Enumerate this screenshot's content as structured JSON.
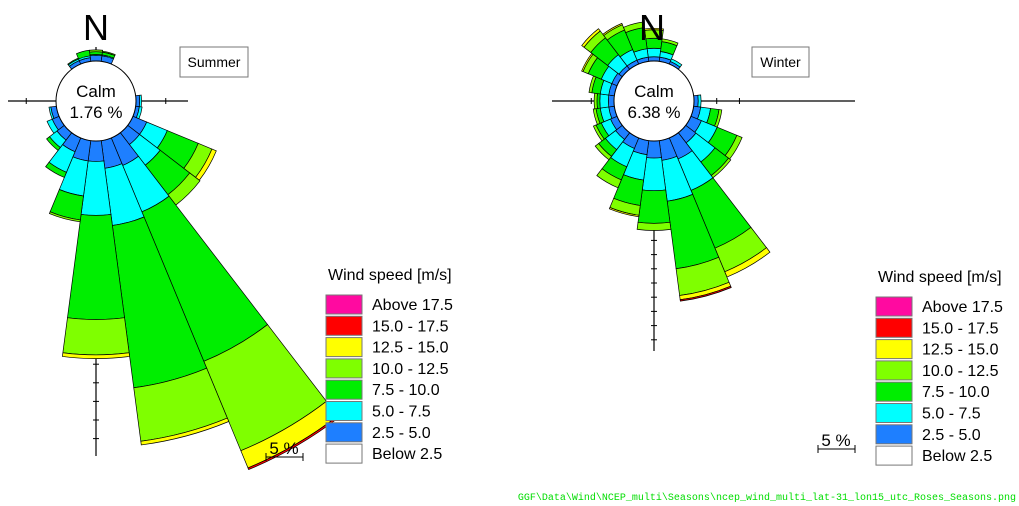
{
  "chart_data": [
    {
      "type": "windrose",
      "title": "Summer",
      "north_label": "N",
      "calm_label": "Calm",
      "calm_value": "1.76 %",
      "scale_label": "5 %",
      "legend_title": "Wind speed [m/s]",
      "speed_bins": [
        "Below 2.5",
        "2.5 - 5.0",
        "5.0 - 7.5",
        "7.5 - 10.0",
        "10.0 - 12.5",
        "12.5 - 15.0",
        "15.0 - 17.5",
        "Above 17.5"
      ],
      "direction_step_deg": 15,
      "petals": [
        {
          "dir": 0,
          "cum": [
            0.3,
            0.35,
            0.5,
            0.6
          ]
        },
        {
          "dir": 15,
          "cum": [
            0.3,
            0.35,
            0.5,
            0.55
          ]
        },
        {
          "dir": 90,
          "cum": [
            0.2,
            0.3
          ]
        },
        {
          "dir": 105,
          "cum": [
            0.2,
            0.35
          ]
        },
        {
          "dir": 120,
          "cum": [
            0.8,
            2.0,
            3.8,
            4.6,
            4.85
          ]
        },
        {
          "dir": 135,
          "cum": [
            0.8,
            2.2,
            4.2,
            4.9
          ]
        },
        {
          "dir": 150,
          "cum": [
            1.6,
            4.3,
            13.0,
            18.2,
            19.2,
            19.3
          ]
        },
        {
          "dir": 165,
          "cum": [
            1.5,
            4.6,
            13.4,
            16.3,
            16.5
          ]
        },
        {
          "dir": 180,
          "cum": [
            1.1,
            4.0,
            9.6,
            11.5,
            11.7
          ]
        },
        {
          "dir": 195,
          "cum": [
            1.1,
            3.0,
            4.3,
            4.4
          ]
        },
        {
          "dir": 210,
          "cum": [
            0.8,
            2.0,
            2.3
          ]
        },
        {
          "dir": 225,
          "cum": [
            0.5,
            1.0,
            1.2
          ]
        },
        {
          "dir": 240,
          "cum": [
            0.4,
            0.7
          ]
        },
        {
          "dir": 255,
          "cum": [
            0.3,
            0.4
          ]
        },
        {
          "dir": 330,
          "cum": [
            0.2,
            0.3,
            0.35
          ]
        },
        {
          "dir": 345,
          "cum": [
            0.2,
            0.3,
            0.6
          ]
        }
      ]
    },
    {
      "type": "windrose",
      "title": "Winter",
      "north_label": "N",
      "calm_label": "Calm",
      "calm_value": "6.38 %",
      "scale_label": "5 %",
      "legend_title": "Wind speed [m/s]",
      "speed_bins": [
        "Below 2.5",
        "2.5 - 5.0",
        "5.0 - 7.5",
        "7.5 - 10.0",
        "10.0 - 12.5",
        "12.5 - 15.0",
        "15.0 - 17.5",
        "Above 17.5"
      ],
      "direction_step_deg": 15,
      "petals": [
        {
          "dir": 0,
          "cum": [
            0.3,
            0.9,
            1.6,
            2.2,
            2.3
          ]
        },
        {
          "dir": 15,
          "cum": [
            0.3,
            0.7,
            1.4,
            1.6
          ]
        },
        {
          "dir": 30,
          "cum": [
            0.2,
            0.4
          ]
        },
        {
          "dir": 90,
          "cum": [
            0.3,
            0.5
          ]
        },
        {
          "dir": 105,
          "cum": [
            0.5,
            1.2,
            1.8,
            2.0
          ]
        },
        {
          "dir": 120,
          "cum": [
            0.8,
            2.0,
            3.5,
            3.9
          ]
        },
        {
          "dir": 135,
          "cum": [
            0.9,
            2.6,
            3.8,
            4.0
          ]
        },
        {
          "dir": 150,
          "cum": [
            1.6,
            4.0,
            8.4,
            10.2,
            10.6
          ]
        },
        {
          "dir": 165,
          "cum": [
            1.4,
            4.3,
            9.1,
            11.0,
            11.3,
            11.4
          ]
        },
        {
          "dir": 180,
          "cum": [
            1.2,
            3.5,
            5.8,
            6.3
          ]
        },
        {
          "dir": 195,
          "cum": [
            1.0,
            2.8,
            4.6,
            5.3,
            5.4
          ]
        },
        {
          "dir": 210,
          "cum": [
            0.8,
            2.2,
            3.2,
            3.8
          ]
        },
        {
          "dir": 225,
          "cum": [
            0.6,
            1.5,
            2.1,
            2.4
          ]
        },
        {
          "dir": 240,
          "cum": [
            0.5,
            1.2,
            1.6,
            1.8
          ]
        },
        {
          "dir": 255,
          "cum": [
            0.4,
            1.0,
            1.3,
            1.5
          ]
        },
        {
          "dir": 270,
          "cum": [
            0.4,
            1.0,
            1.2,
            1.4
          ]
        },
        {
          "dir": 285,
          "cum": [
            0.4,
            1.0,
            1.6,
            1.8
          ]
        },
        {
          "dir": 300,
          "cum": [
            0.4,
            1.2,
            2.2,
            2.6,
            2.7
          ]
        },
        {
          "dir": 315,
          "cum": [
            0.3,
            1.3,
            2.8,
            3.4,
            3.6
          ]
        },
        {
          "dir": 330,
          "cum": [
            0.3,
            1.1,
            2.6,
            3.0,
            3.1
          ]
        },
        {
          "dir": 345,
          "cum": [
            0.3,
            0.9,
            2.4,
            2.8
          ]
        }
      ]
    }
  ],
  "bin_colors": [
    "#ffffff",
    "#1e7fff",
    "#00ffff",
    "#00ee00",
    "#7fff00",
    "#ffff00",
    "#ff0000",
    "#ff0aa0"
  ],
  "footer_text": "GGF\\Data\\Wind\\NCEP_multi\\Seasons\\ncep_wind_multi_lat-31_lon15_utc_Roses_Seasons.png",
  "footer_color": "#00dd00"
}
